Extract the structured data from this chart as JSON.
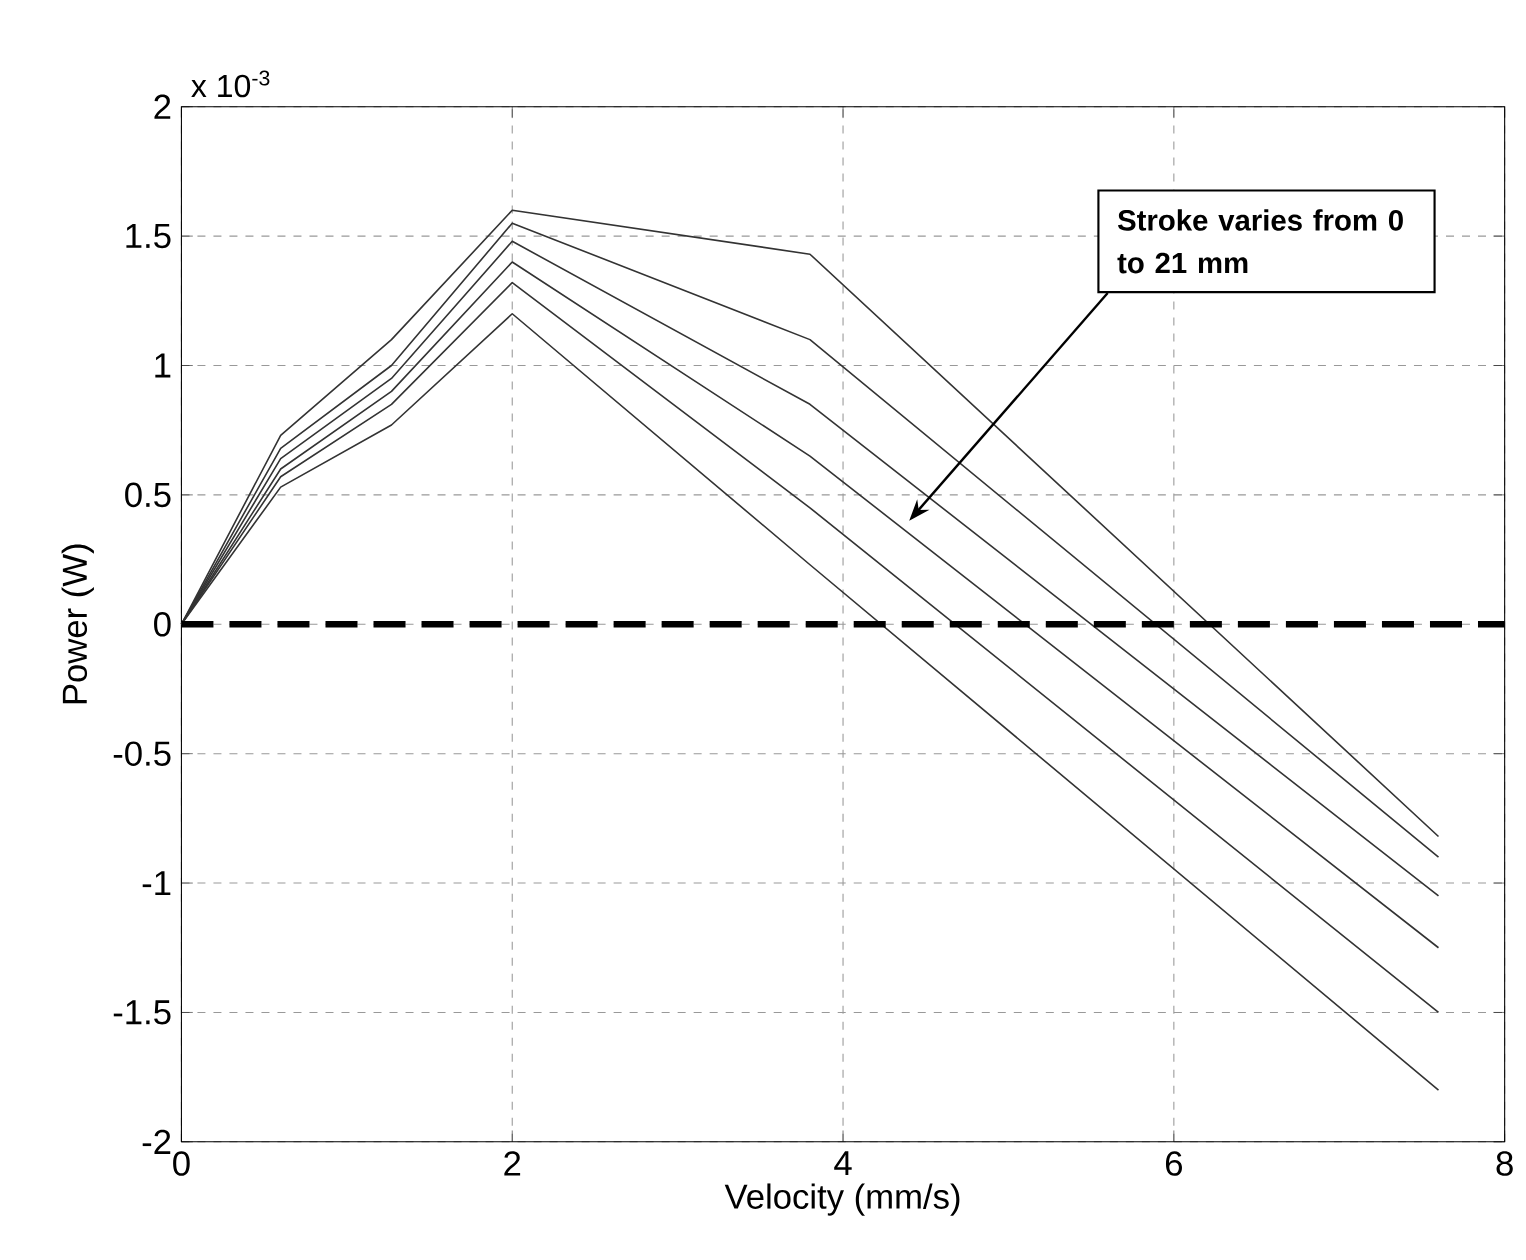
{
  "chart_data": {
    "type": "line",
    "xlabel": "Velocity (mm/s)",
    "ylabel": "Power (W)",
    "x": [
      0,
      0.6,
      1.27,
      2,
      3.8,
      7.6
    ],
    "series": [
      {
        "color": "#333333",
        "values": [
          0,
          0.73,
          1.1,
          1.6,
          1.43,
          -0.82
        ]
      },
      {
        "color": "#333333",
        "values": [
          0,
          0.68,
          1.0,
          1.55,
          1.1,
          -0.9
        ]
      },
      {
        "color": "#333333",
        "values": [
          0,
          0.64,
          0.95,
          1.48,
          0.85,
          -1.05
        ]
      },
      {
        "color": "#333333",
        "values": [
          0,
          0.6,
          0.9,
          1.4,
          0.65,
          -1.25
        ]
      },
      {
        "color": "#333333",
        "values": [
          0,
          0.57,
          0.85,
          1.32,
          0.45,
          -1.5
        ]
      },
      {
        "color": "#333333",
        "values": [
          0,
          0.53,
          0.77,
          1.2,
          0.23,
          -1.8
        ]
      }
    ],
    "xlim": [
      0,
      8
    ],
    "xticks": [
      0,
      2,
      4,
      6,
      8
    ],
    "ylim": [
      -2,
      2
    ],
    "yticks": [
      -2,
      -1.5,
      -1,
      -0.5,
      0,
      0.5,
      1,
      1.5,
      2
    ],
    "grid": true,
    "ref_lines": [
      {
        "axis": "y",
        "value": 0,
        "color": "#000000",
        "line_style": "dashed"
      }
    ],
    "annotations": [
      "x 10$^{-3}$",
      "**Stroke varies from 0 to 21 mm**"
    ]
  }
}
